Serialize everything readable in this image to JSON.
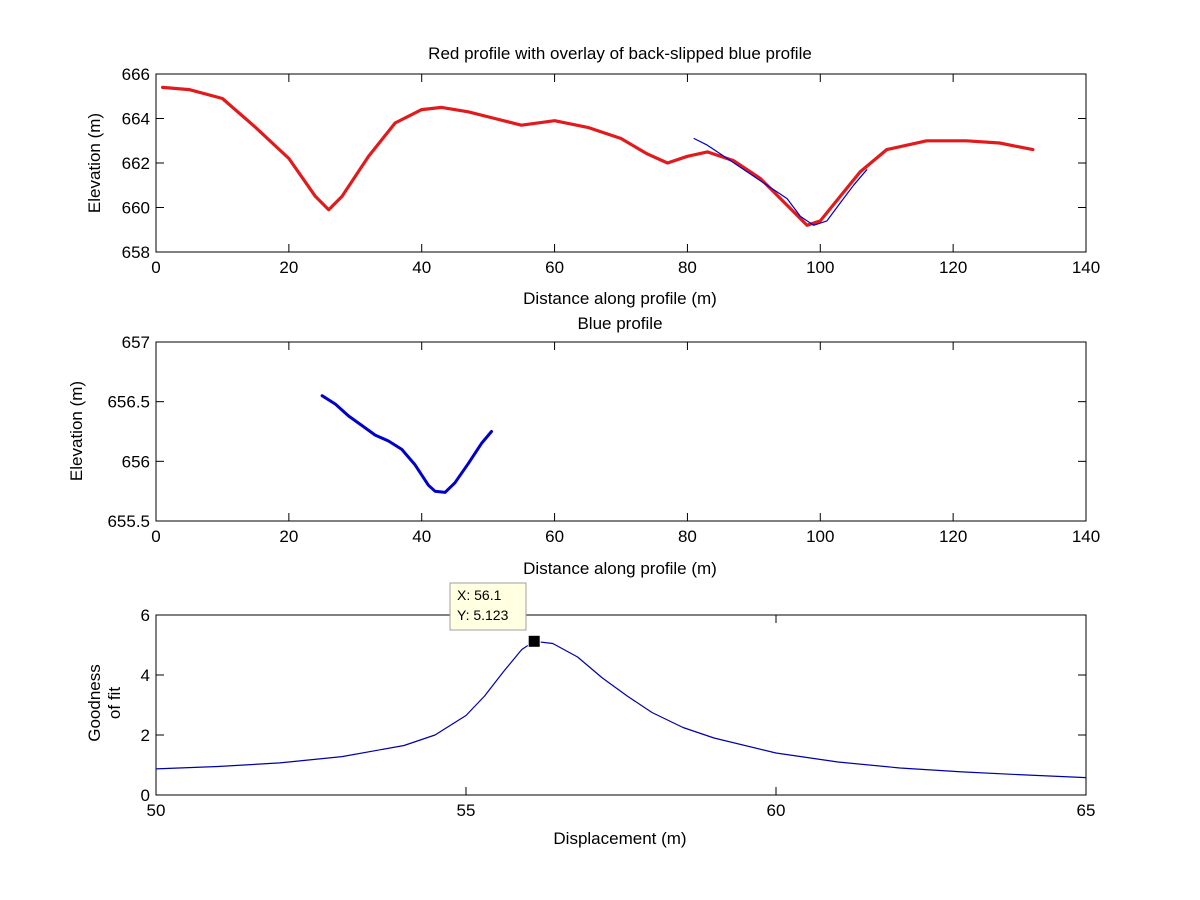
{
  "chart_data": [
    {
      "id": "top",
      "type": "line",
      "title": "Red profile with overlay of back-slipped blue profile",
      "xlabel": "Distance along profile (m)",
      "ylabel": "Elevation (m)",
      "xlim": [
        0,
        140
      ],
      "ylim": [
        658,
        666
      ],
      "xticks": [
        0,
        20,
        40,
        60,
        80,
        100,
        120,
        140
      ],
      "yticks": [
        658,
        660,
        662,
        664,
        666
      ],
      "xtick_labels": [
        "0",
        "20",
        "40",
        "60",
        "80",
        "100",
        "120",
        "140"
      ],
      "ytick_labels": [
        "658",
        "660",
        "662",
        "664",
        "666"
      ],
      "series": [
        {
          "name": "Red profile",
          "color": "#e31a1c",
          "x": [
            1,
            5,
            10,
            15,
            20,
            24,
            26,
            28,
            32,
            36,
            40,
            43,
            47,
            51,
            55,
            60,
            65,
            70,
            74,
            77,
            80,
            83,
            87,
            91,
            95,
            98,
            100,
            103,
            106,
            110,
            116,
            122,
            127,
            132
          ],
          "y": [
            665.4,
            665.3,
            664.9,
            663.6,
            662.2,
            660.5,
            659.9,
            660.5,
            662.3,
            663.8,
            664.4,
            664.5,
            664.3,
            664.0,
            663.7,
            663.9,
            663.6,
            663.1,
            662.4,
            662.0,
            662.3,
            662.5,
            662.1,
            661.3,
            660.1,
            659.2,
            659.4,
            660.5,
            661.6,
            662.6,
            663.0,
            663.0,
            662.9,
            662.6
          ]
        },
        {
          "name": "Back-slipped blue profile",
          "color": "#0000cc",
          "x": [
            81,
            83,
            86,
            89,
            92,
            95,
            97,
            99,
            101,
            103,
            105,
            107
          ],
          "y": [
            663.1,
            662.8,
            662.2,
            661.6,
            661.0,
            660.4,
            659.6,
            659.2,
            659.4,
            660.2,
            661.0,
            661.7
          ]
        }
      ]
    },
    {
      "id": "middle",
      "type": "line",
      "title": "Blue profile",
      "xlabel": "Distance along profile (m)",
      "ylabel": "Elevation (m)",
      "xlim": [
        0,
        140
      ],
      "ylim": [
        655.5,
        657
      ],
      "xticks": [
        0,
        20,
        40,
        60,
        80,
        100,
        120,
        140
      ],
      "yticks": [
        655.5,
        656,
        656.5,
        657
      ],
      "xtick_labels": [
        "0",
        "20",
        "40",
        "60",
        "80",
        "100",
        "120",
        "140"
      ],
      "ytick_labels": [
        "655.5",
        "656",
        "656.5",
        "657"
      ],
      "series": [
        {
          "name": "Blue profile",
          "color": "#0000cc",
          "x": [
            25,
            27,
            29,
            31,
            33,
            35,
            37,
            39,
            41,
            42,
            43.5,
            45,
            47,
            49,
            50.5
          ],
          "y": [
            656.55,
            656.48,
            656.38,
            656.3,
            656.22,
            656.17,
            656.1,
            655.97,
            655.8,
            655.75,
            655.74,
            655.82,
            655.98,
            656.15,
            656.25
          ]
        }
      ]
    },
    {
      "id": "bottom",
      "type": "line",
      "title": "",
      "xlabel": "Displacement (m)",
      "ylabel": "Goodness of fit",
      "ylabel_lines": [
        "Goodness",
        "of fit"
      ],
      "xlim": [
        50,
        65
      ],
      "ylim": [
        0,
        6
      ],
      "xticks": [
        50,
        55,
        60,
        65
      ],
      "yticks": [
        0,
        2,
        4,
        6
      ],
      "xtick_labels": [
        "50",
        "55",
        "60",
        "65"
      ],
      "ytick_labels": [
        "0",
        "2",
        "4",
        "6"
      ],
      "series": [
        {
          "name": "Goodness of fit",
          "color": "#0000aa",
          "x": [
            50,
            51,
            52,
            53,
            54,
            54.5,
            55,
            55.3,
            55.6,
            55.9,
            56.1,
            56.4,
            56.8,
            57.2,
            57.6,
            58,
            58.5,
            59,
            60,
            61,
            62,
            63,
            64,
            65
          ],
          "y": [
            0.87,
            0.95,
            1.07,
            1.28,
            1.65,
            2.0,
            2.65,
            3.3,
            4.1,
            4.85,
            5.123,
            5.05,
            4.6,
            3.9,
            3.3,
            2.75,
            2.25,
            1.9,
            1.4,
            1.1,
            0.9,
            0.77,
            0.67,
            0.58
          ]
        }
      ],
      "datatip": {
        "x": 56.1,
        "y": 5.123,
        "x_text": "X: 56.1",
        "y_text": "Y: 5.123"
      }
    }
  ]
}
